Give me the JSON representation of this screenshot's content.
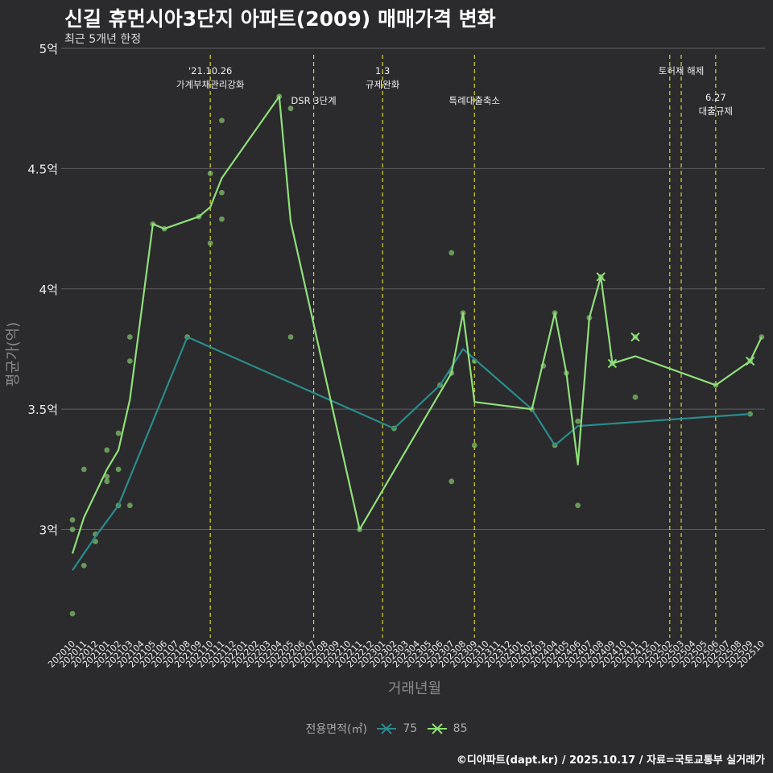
{
  "title": "신길 휴먼시아3단지 아파트(2009) 매매가격 변화",
  "subtitle": "최근 5개년 한정",
  "caption": "©디아파트(dapt.kr) / 2025.10.17 / 자료=국토교통부 실거래가",
  "legend": {
    "title": "전용면적(㎡)",
    "items": [
      {
        "label": "75",
        "color": "#2a8c8c"
      },
      {
        "label": "85",
        "color": "#8fe07a"
      }
    ]
  },
  "chart_data": {
    "type": "line",
    "xlabel": "거래년월",
    "ylabel": "평균가(억)",
    "ylim": [
      2.55,
      5.0
    ],
    "yticks": [
      3,
      3.5,
      4,
      4.5,
      5
    ],
    "ytick_labels": [
      "3억",
      "3.5억",
      "4억",
      "4.5억",
      "5억"
    ],
    "grid": true,
    "categories": [
      "202010",
      "202011",
      "202012",
      "202101",
      "202102",
      "202103",
      "202104",
      "202105",
      "202106",
      "202107",
      "202108",
      "202109",
      "202110",
      "202111",
      "202112",
      "202201",
      "202202",
      "202203",
      "202204",
      "202205",
      "202206",
      "202207",
      "202208",
      "202209",
      "202210",
      "202211",
      "202212",
      "202301",
      "202302",
      "202303",
      "202304",
      "202305",
      "202306",
      "202307",
      "202308",
      "202309",
      "202310",
      "202311",
      "202312",
      "202401",
      "202402",
      "202403",
      "202404",
      "202405",
      "202406",
      "202407",
      "202408",
      "202409",
      "202410",
      "202411",
      "202412",
      "202501",
      "202502",
      "202503",
      "202504",
      "202505",
      "202506",
      "202507",
      "202508",
      "202509",
      "202510"
    ],
    "series": [
      {
        "name": "75",
        "color": "#2a8c8c",
        "points": [
          [
            "202010",
            2.83
          ],
          [
            "202012",
            2.97
          ],
          [
            "202102",
            3.1
          ],
          [
            "202108",
            3.8
          ],
          [
            "202302",
            3.42
          ],
          [
            "202306",
            3.6
          ],
          [
            "202308",
            3.75
          ],
          [
            "202402",
            3.5
          ],
          [
            "202404",
            3.35
          ],
          [
            "202406",
            3.43
          ],
          [
            "202509",
            3.48
          ]
        ],
        "markers": []
      },
      {
        "name": "85",
        "color": "#8fe07a",
        "points": [
          [
            "202010",
            2.9
          ],
          [
            "202011",
            3.05
          ],
          [
            "202101",
            3.25
          ],
          [
            "202102",
            3.33
          ],
          [
            "202103",
            3.54
          ],
          [
            "202105",
            4.27
          ],
          [
            "202106",
            4.25
          ],
          [
            "202109",
            4.3
          ],
          [
            "202110",
            4.34
          ],
          [
            "202111",
            4.46
          ],
          [
            "202204",
            4.8
          ],
          [
            "202205",
            4.28
          ],
          [
            "202211",
            3.0
          ],
          [
            "202307",
            3.65
          ],
          [
            "202308",
            3.9
          ],
          [
            "202309",
            3.53
          ],
          [
            "202402",
            3.5
          ],
          [
            "202404",
            3.9
          ],
          [
            "202405",
            3.65
          ],
          [
            "202406",
            3.27
          ],
          [
            "202407",
            3.88
          ],
          [
            "202408",
            4.05
          ],
          [
            "202409",
            3.69
          ],
          [
            "202411",
            3.72
          ],
          [
            "202506",
            3.6
          ],
          [
            "202509",
            3.7
          ],
          [
            "202510",
            3.8
          ]
        ],
        "markers": [
          [
            "202408",
            4.05
          ],
          [
            "202409",
            3.69
          ],
          [
            "202411",
            3.8
          ],
          [
            "202509",
            3.7
          ]
        ]
      }
    ],
    "scatter": [
      [
        "202010",
        3.04
      ],
      [
        "202010",
        3.0
      ],
      [
        "202010",
        2.65
      ],
      [
        "202011",
        3.25
      ],
      [
        "202011",
        2.85
      ],
      [
        "202012",
        2.98
      ],
      [
        "202012",
        2.95
      ],
      [
        "202101",
        3.33
      ],
      [
        "202101",
        3.22
      ],
      [
        "202101",
        3.2
      ],
      [
        "202102",
        3.4
      ],
      [
        "202102",
        3.25
      ],
      [
        "202102",
        3.1
      ],
      [
        "202103",
        3.8
      ],
      [
        "202103",
        3.7
      ],
      [
        "202103",
        3.1
      ],
      [
        "202105",
        4.27
      ],
      [
        "202106",
        4.25
      ],
      [
        "202108",
        3.8
      ],
      [
        "202109",
        4.3
      ],
      [
        "202110",
        4.48
      ],
      [
        "202110",
        4.19
      ],
      [
        "202111",
        4.7
      ],
      [
        "202111",
        4.4
      ],
      [
        "202111",
        4.29
      ],
      [
        "202204",
        4.8
      ],
      [
        "202205",
        4.75
      ],
      [
        "202205",
        3.8
      ],
      [
        "202211",
        3.0
      ],
      [
        "202302",
        3.42
      ],
      [
        "202306",
        3.6
      ],
      [
        "202307",
        4.15
      ],
      [
        "202307",
        3.65
      ],
      [
        "202307",
        3.2
      ],
      [
        "202308",
        3.9
      ],
      [
        "202309",
        3.7
      ],
      [
        "202309",
        3.35
      ],
      [
        "202402",
        3.5
      ],
      [
        "202403",
        3.68
      ],
      [
        "202404",
        3.9
      ],
      [
        "202404",
        3.35
      ],
      [
        "202405",
        3.65
      ],
      [
        "202406",
        3.45
      ],
      [
        "202406",
        3.1
      ],
      [
        "202407",
        3.88
      ],
      [
        "202408",
        4.05
      ],
      [
        "202409",
        3.69
      ],
      [
        "202411",
        3.8
      ],
      [
        "202411",
        3.55
      ],
      [
        "202506",
        3.6
      ],
      [
        "202509",
        3.7
      ],
      [
        "202509",
        3.48
      ],
      [
        "202510",
        3.8
      ]
    ],
    "events": [
      {
        "x": "202110",
        "label": [
          "'21.10.26",
          "가계부채관리강화"
        ],
        "level": 0
      },
      {
        "x": "202207",
        "label": [
          "DSR 3단계"
        ],
        "level": 1
      },
      {
        "x": "202301",
        "label": [
          "1.3",
          "규제완화"
        ],
        "level": 0
      },
      {
        "x": "202309",
        "label": [
          "특례대출축소"
        ],
        "level": 1
      },
      {
        "x": "202502",
        "label": [],
        "level": 0
      },
      {
        "x": "202503",
        "label": [
          "토허제 해제"
        ],
        "level": 0
      },
      {
        "x": "202506",
        "label": [
          "6.27",
          "대출규제"
        ],
        "level": 2
      }
    ]
  }
}
